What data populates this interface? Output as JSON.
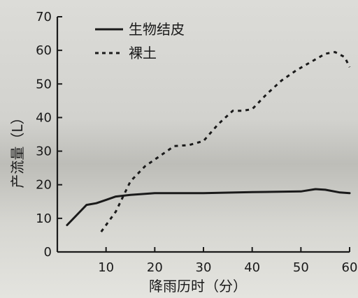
{
  "chart_data": {
    "type": "line",
    "title": "",
    "xlabel": "降雨历时（分）",
    "ylabel": "产流量（L）",
    "xlim": [
      0,
      60
    ],
    "ylim": [
      0,
      70
    ],
    "x_ticks": [
      0,
      10,
      20,
      30,
      40,
      50,
      60
    ],
    "x_tick_labels": [
      "10",
      "20",
      "30",
      "40",
      "50",
      "60"
    ],
    "y_ticks": [
      0,
      10,
      20,
      30,
      40,
      50,
      60,
      70
    ],
    "grid": false,
    "legend_position": "top-left",
    "series": [
      {
        "name": "生物结皮",
        "style": "solid",
        "color": "#1a1a1a",
        "x": [
          2,
          4,
          6,
          8,
          10,
          12,
          15,
          20,
          30,
          40,
          50,
          53,
          55,
          58,
          60
        ],
        "y": [
          8,
          11,
          14,
          14.5,
          15.5,
          16.5,
          17,
          17.5,
          17.5,
          17.8,
          18,
          18.7,
          18.5,
          17.7,
          17.5
        ]
      },
      {
        "name": "裸土",
        "style": "dashed",
        "color": "#1a1a1a",
        "x": [
          9,
          12,
          15,
          18,
          21,
          24,
          27,
          30,
          33,
          36,
          38,
          40,
          43,
          46,
          49,
          52,
          55,
          57,
          59,
          60
        ],
        "y": [
          6,
          12,
          21,
          25.5,
          28.5,
          31.5,
          31.8,
          33,
          38,
          42,
          42,
          42.5,
          47,
          51,
          54,
          56.5,
          59,
          59.5,
          58,
          55
        ]
      }
    ]
  }
}
